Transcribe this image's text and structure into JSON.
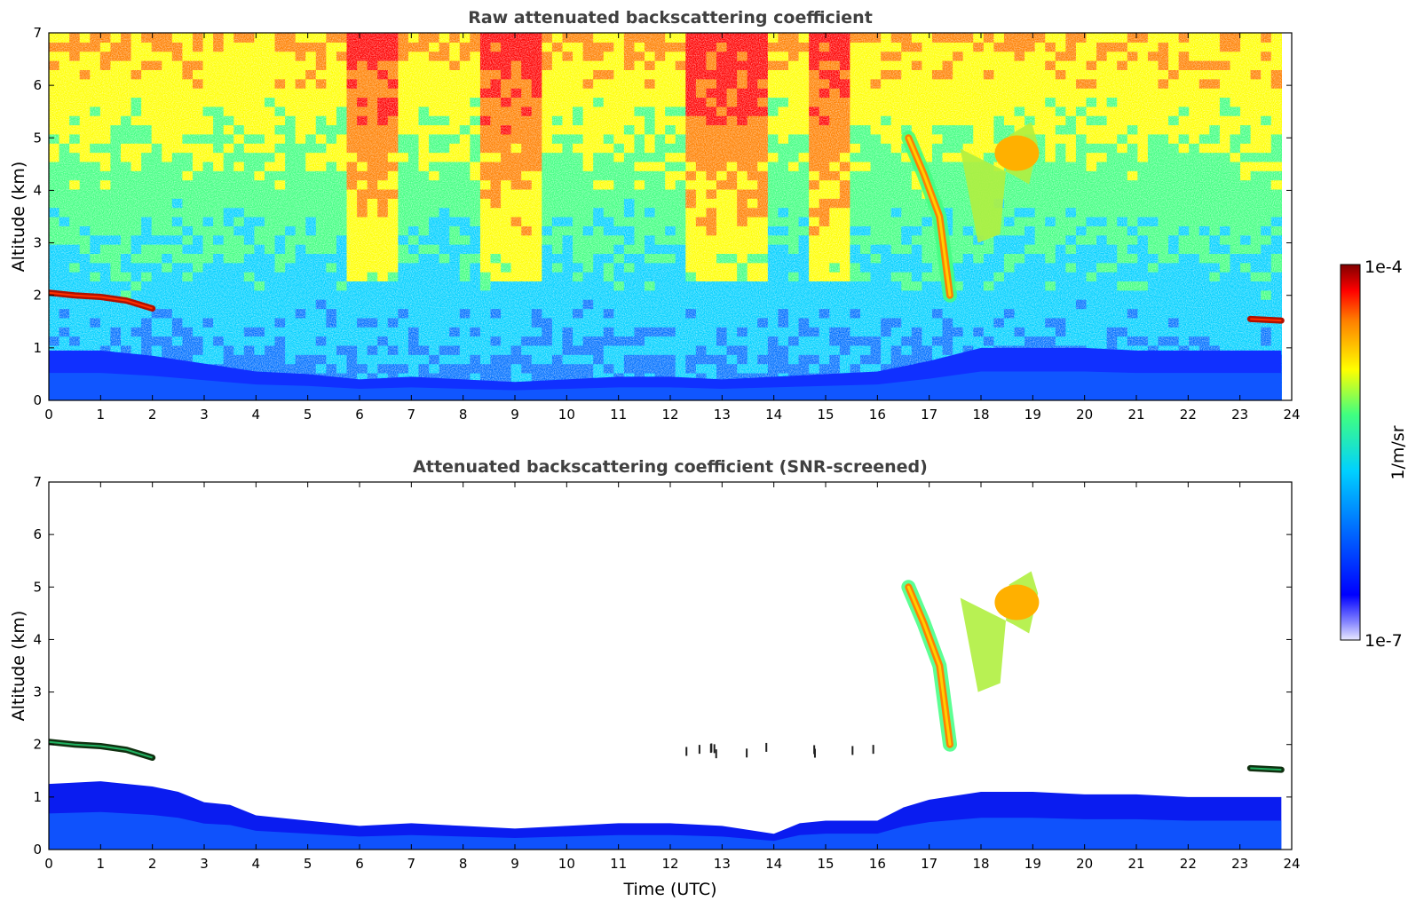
{
  "chart_data": [
    {
      "type": "heatmap",
      "title": "Raw attenuated backscattering coefficient",
      "xlabel": "",
      "ylabel": "Altitude (km)",
      "xlim": [
        0,
        24
      ],
      "ylim": [
        0,
        7
      ],
      "x_ticks": [
        "0",
        "1",
        "2",
        "3",
        "4",
        "5",
        "6",
        "7",
        "8",
        "9",
        "10",
        "11",
        "12",
        "13",
        "14",
        "15",
        "16",
        "17",
        "18",
        "19",
        "20",
        "21",
        "22",
        "23",
        "24"
      ],
      "y_ticks": [
        "0",
        "1",
        "2",
        "3",
        "4",
        "5",
        "6",
        "7"
      ],
      "data_end_time": 23.8,
      "features": [
        {
          "kind": "boundary-layer",
          "note": "dense blue near surface",
          "height_profile": [
            [
              0,
              0.95
            ],
            [
              1,
              0.95
            ],
            [
              2,
              0.85
            ],
            [
              3,
              0.7
            ],
            [
              4,
              0.55
            ],
            [
              5,
              0.5
            ],
            [
              6,
              0.4
            ],
            [
              7,
              0.45
            ],
            [
              8,
              0.4
            ],
            [
              9,
              0.35
            ],
            [
              10,
              0.4
            ],
            [
              11,
              0.45
            ],
            [
              12,
              0.45
            ],
            [
              13,
              0.4
            ],
            [
              14,
              0.45
            ],
            [
              15,
              0.5
            ],
            [
              16,
              0.55
            ],
            [
              17,
              0.75
            ],
            [
              18,
              1.0
            ],
            [
              19,
              1.0
            ],
            [
              20,
              1.0
            ],
            [
              21,
              0.95
            ],
            [
              22,
              0.95
            ],
            [
              23,
              0.95
            ],
            [
              23.8,
              0.95
            ]
          ]
        },
        {
          "kind": "cloud-layer",
          "time": [
            0,
            2.1
          ],
          "altitude_km": [
            [
              0,
              2.05
            ],
            [
              0.5,
              2.0
            ],
            [
              1,
              1.97
            ],
            [
              1.5,
              1.9
            ],
            [
              2.0,
              1.75
            ]
          ],
          "intensity": "high"
        },
        {
          "kind": "cloud-layer",
          "time": [
            23.2,
            23.8
          ],
          "altitude_km": [
            [
              23.2,
              1.55
            ],
            [
              23.8,
              1.52
            ]
          ],
          "intensity": "high"
        },
        {
          "kind": "cirrus-streak",
          "time": [
            16.6,
            17.5
          ],
          "altitude_km": [
            [
              16.6,
              5.0
            ],
            [
              16.9,
              4.3
            ],
            [
              17.2,
              3.5
            ],
            [
              17.4,
              2.0
            ]
          ],
          "intensity": "high"
        },
        {
          "kind": "cirrus-patch",
          "time": [
            17.6,
            19.1
          ],
          "altitude_km": [
            3.0,
            5.3
          ],
          "intensity": "medium"
        },
        {
          "kind": "noisy-upper-band",
          "time": [
            [
              5.8,
              6.8
            ],
            [
              8.4,
              9.5
            ],
            [
              12.3,
              13.8
            ],
            [
              14.6,
              15.5
            ]
          ],
          "altitude_km": [
            3.0,
            7.0
          ],
          "intensity": "medium-high"
        }
      ]
    },
    {
      "type": "heatmap",
      "title": "Attenuated backscattering coefficient (SNR-screened)",
      "xlabel": "Time (UTC)",
      "ylabel": "Altitude (km)",
      "xlim": [
        0,
        24
      ],
      "ylim": [
        0,
        7
      ],
      "x_ticks": [
        "0",
        "1",
        "2",
        "3",
        "4",
        "5",
        "6",
        "7",
        "8",
        "9",
        "10",
        "11",
        "12",
        "13",
        "14",
        "15",
        "16",
        "17",
        "18",
        "19",
        "20",
        "21",
        "22",
        "23",
        "24"
      ],
      "y_ticks": [
        "0",
        "1",
        "2",
        "3",
        "4",
        "5",
        "6",
        "7"
      ],
      "data_end_time": 23.8,
      "features": [
        {
          "kind": "boundary-layer",
          "height_profile": [
            [
              0,
              1.25
            ],
            [
              1,
              1.3
            ],
            [
              2,
              1.2
            ],
            [
              2.5,
              1.1
            ],
            [
              3,
              0.9
            ],
            [
              3.5,
              0.85
            ],
            [
              4,
              0.65
            ],
            [
              5,
              0.55
            ],
            [
              6,
              0.45
            ],
            [
              7,
              0.5
            ],
            [
              8,
              0.45
            ],
            [
              9,
              0.4
            ],
            [
              10,
              0.45
            ],
            [
              11,
              0.5
            ],
            [
              12,
              0.5
            ],
            [
              13,
              0.45
            ],
            [
              14,
              0.3
            ],
            [
              14.5,
              0.5
            ],
            [
              15,
              0.55
            ],
            [
              16,
              0.55
            ],
            [
              16.5,
              0.8
            ],
            [
              17,
              0.95
            ],
            [
              18,
              1.1
            ],
            [
              19,
              1.1
            ],
            [
              20,
              1.05
            ],
            [
              21,
              1.05
            ],
            [
              22,
              1.0
            ],
            [
              23,
              1.0
            ],
            [
              23.8,
              1.0
            ]
          ]
        },
        {
          "kind": "cloud-layer",
          "time": [
            0,
            2.1
          ],
          "altitude_km": [
            [
              0,
              2.05
            ],
            [
              0.5,
              2.0
            ],
            [
              1,
              1.97
            ],
            [
              1.5,
              1.9
            ],
            [
              2.0,
              1.75
            ]
          ],
          "intensity": "high"
        },
        {
          "kind": "cloud-layer",
          "time": [
            23.2,
            23.8
          ],
          "altitude_km": [
            [
              23.2,
              1.55
            ],
            [
              23.8,
              1.52
            ]
          ],
          "intensity": "high"
        },
        {
          "kind": "cirrus-streak",
          "time": [
            16.6,
            17.5
          ],
          "altitude_km": [
            [
              16.6,
              5.0
            ],
            [
              16.9,
              4.3
            ],
            [
              17.2,
              3.5
            ],
            [
              17.4,
              2.0
            ]
          ],
          "intensity": "high"
        },
        {
          "kind": "cirrus-patch",
          "time": [
            17.6,
            19.1
          ],
          "altitude_km": [
            3.0,
            5.3
          ],
          "intensity": "medium"
        },
        {
          "kind": "sparse-echoes",
          "time": [
            11.4,
            16.0
          ],
          "altitude_km": [
            1.9,
            2.1
          ]
        }
      ]
    }
  ],
  "colorbar": {
    "label": "1/m/sr",
    "max_label": "1e-4",
    "min_label": "1e-7",
    "scale": "log",
    "range": [
      1e-07,
      0.0001
    ],
    "colors": [
      "#e8e8ff",
      "#0000ff",
      "#0070ff",
      "#00d0ff",
      "#40ff80",
      "#ffff00",
      "#ff8000",
      "#ff0000",
      "#800000"
    ]
  }
}
